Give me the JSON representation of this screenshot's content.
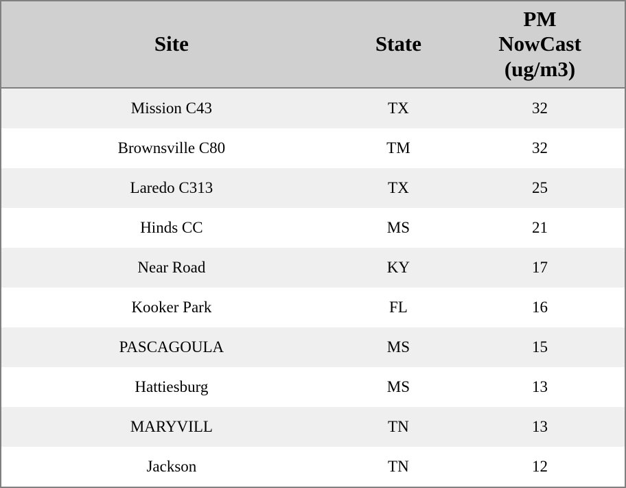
{
  "table": {
    "header_display": {
      "site": "Site",
      "state": "State",
      "pm": "PM\nNowCast\n(ug/m3)"
    },
    "colors": {
      "outer_border": "#808080",
      "header_bg": "#d0d0d0",
      "row_stripe": "#efefef",
      "row_plain": "#ffffff",
      "text": "#000000"
    }
  },
  "chart_data": {
    "type": "table",
    "title": "",
    "columns": [
      "Site",
      "State",
      "PM NowCast (ug/m3)"
    ],
    "rows": [
      [
        "Mission C43",
        "TX",
        32
      ],
      [
        "Brownsville C80",
        "TM",
        32
      ],
      [
        "Laredo C313",
        "TX",
        25
      ],
      [
        "Hinds CC",
        "MS",
        21
      ],
      [
        "Near Road",
        "KY",
        17
      ],
      [
        "Kooker Park",
        "FL",
        16
      ],
      [
        "PASCAGOULA",
        "MS",
        15
      ],
      [
        "Hattiesburg",
        "MS",
        13
      ],
      [
        "MARYVILL",
        "TN",
        13
      ],
      [
        "Jackson",
        "TN",
        12
      ]
    ],
    "layout": {
      "header_lines_pm_column": [
        "PM",
        "NowCast",
        "(ug/m3)"
      ],
      "row_striping": "odd rows #efefef, even rows #ffffff",
      "alignment": "all columns center-aligned",
      "gridlines": "outer border and header divider only"
    }
  }
}
